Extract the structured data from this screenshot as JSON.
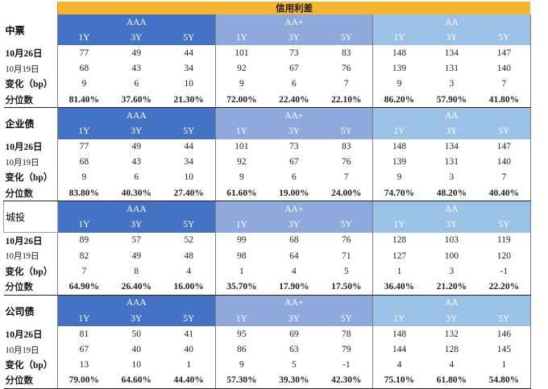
{
  "title": "信用利差",
  "tenors": [
    "1Y",
    "3Y",
    "5Y"
  ],
  "sections": [
    {
      "name": "中票",
      "groups": [
        "AAA",
        "AA+",
        "AA"
      ],
      "rows": [
        {
          "label": "10月26日",
          "values": [
            "77",
            "49",
            "44",
            "101",
            "73",
            "83",
            "148",
            "134",
            "147"
          ]
        },
        {
          "label": "10月19日",
          "values": [
            "68",
            "43",
            "34",
            "92",
            "67",
            "76",
            "139",
            "131",
            "140"
          ]
        },
        {
          "label": "变化（bp）",
          "values": [
            "9",
            "6",
            "10",
            "9",
            "6",
            "7",
            "9",
            "3",
            "7"
          ]
        },
        {
          "label": "分位数",
          "values": [
            "81.40%",
            "37.60%",
            "21.30%",
            "72.00%",
            "22.40%",
            "22.10%",
            "86.20%",
            "57.90%",
            "41.80%"
          ]
        }
      ]
    },
    {
      "name": "企业债",
      "groups": [
        "AAA",
        "AA+",
        "AA"
      ],
      "rows": [
        {
          "label": "10月26日",
          "values": [
            "77",
            "49",
            "44",
            "101",
            "73",
            "83",
            "148",
            "134",
            "147"
          ]
        },
        {
          "label": "10月19日",
          "values": [
            "68",
            "43",
            "34",
            "92",
            "67",
            "76",
            "139",
            "131",
            "140"
          ]
        },
        {
          "label": "变化（bp）",
          "values": [
            "9",
            "6",
            "10",
            "9",
            "6",
            "7",
            "9",
            "3",
            "7"
          ]
        },
        {
          "label": "分位数",
          "values": [
            "83.80%",
            "40.30%",
            "27.40%",
            "61.60%",
            "19.00%",
            "24.00%",
            "74.70%",
            "48.20%",
            "40.40%"
          ]
        }
      ]
    },
    {
      "name": "城投",
      "groups": [
        "AAA",
        "AA+",
        "AA"
      ],
      "rows": [
        {
          "label": "10月26日",
          "values": [
            "89",
            "57",
            "52",
            "99",
            "68",
            "76",
            "128",
            "103",
            "119"
          ]
        },
        {
          "label": "10月19日",
          "values": [
            "82",
            "49",
            "48",
            "98",
            "64",
            "71",
            "127",
            "100",
            "120"
          ]
        },
        {
          "label": "变化（bp）",
          "values": [
            "7",
            "8",
            "4",
            "1",
            "4",
            "5",
            "1",
            "3",
            "-1"
          ]
        },
        {
          "label": "分位数",
          "values": [
            "64.90%",
            "26.40%",
            "16.00%",
            "35.70%",
            "17.90%",
            "17.50%",
            "36.40%",
            "21.20%",
            "22.20%"
          ]
        }
      ]
    },
    {
      "name": "公司债",
      "groups": [
        "AAA",
        "AA+",
        "AA"
      ],
      "rows": [
        {
          "label": "10月26日",
          "values": [
            "81",
            "50",
            "41",
            "95",
            "69",
            "78",
            "148",
            "132",
            "146"
          ]
        },
        {
          "label": "10月19日",
          "values": [
            "67",
            "40",
            "40",
            "86",
            "63",
            "79",
            "144",
            "128",
            "145"
          ]
        },
        {
          "label": "变化（bp）",
          "values": [
            "13",
            "10",
            "1",
            "9",
            "5",
            "-1",
            "4",
            "4",
            "1"
          ]
        },
        {
          "label": "分位数",
          "values": [
            "79.00%",
            "64.60%",
            "44.40%",
            "57.30%",
            "39.30%",
            "42.30%",
            "75.10%",
            "61.80%",
            "54.80%"
          ]
        }
      ]
    }
  ]
}
